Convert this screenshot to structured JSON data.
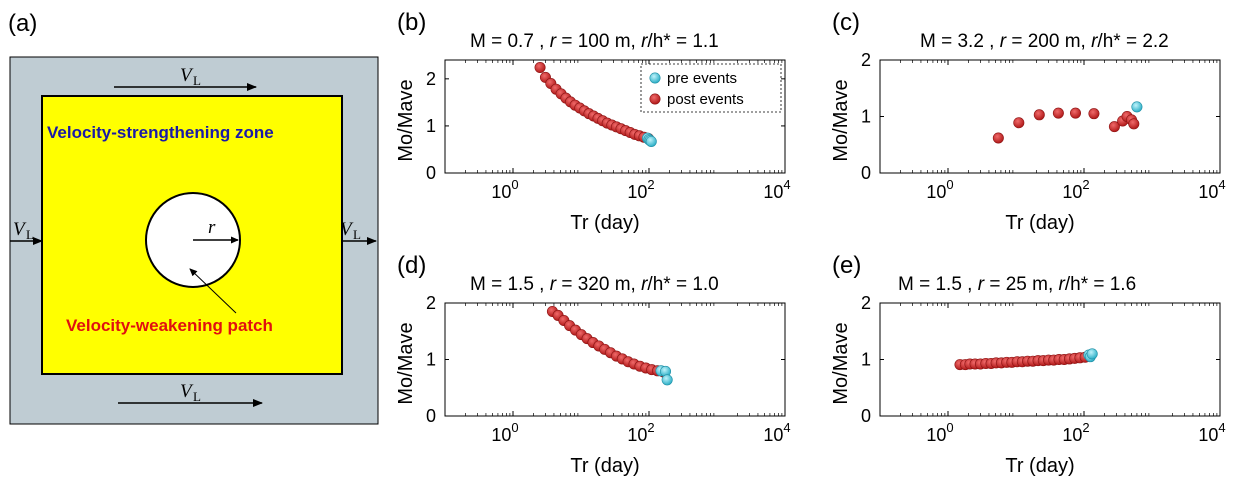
{
  "diagram": {
    "panel_label": "(a)",
    "strengthening_label": "Velocity-strengthening zone",
    "weakening_label": "Velocity-weakening patch",
    "radius_label": "r",
    "loading_main": "V",
    "loading_sub": "L",
    "colors": {
      "outer": "#bfccd3",
      "zone": "#ffff00",
      "patch": "#ffffff",
      "blue_text": "#1a1aa8",
      "red_text": "#e01010"
    }
  },
  "legend": {
    "pre_label": "pre events",
    "post_label": "post events"
  },
  "colors": {
    "pre": "#3cc6dc",
    "post": "#d42a2a"
  },
  "chart_data": [
    {
      "id": "b",
      "panel_label": "(b)",
      "type": "scatter",
      "title_parts": {
        "m": "M = 0.7 , ",
        "r_sym": "r",
        "r_val": " = 100 m, ",
        "rh_sym": "r",
        "rh_val": "/h* = 1.1"
      },
      "xlabel": "Tr (day)",
      "ylabel": "Mo/Mave",
      "xscale": "log",
      "xlim": [
        0.1,
        10000
      ],
      "ylim": [
        0,
        2.4
      ],
      "xticks": [
        {
          "v": 1,
          "base": "10",
          "exp": "0"
        },
        {
          "v": 100,
          "base": "10",
          "exp": "2"
        },
        {
          "v": 10000,
          "base": "10",
          "exp": "4"
        }
      ],
      "yticks": [
        "0",
        "1",
        "2"
      ],
      "legend": "top-right",
      "series": [
        {
          "name": "pre events",
          "x": [
            95,
            100,
            104,
            108
          ],
          "y": [
            0.74,
            0.71,
            0.69,
            0.67
          ]
        },
        {
          "name": "post events",
          "x": [
            2.5,
            3.0,
            3.6,
            4.3,
            5.1,
            6.0,
            7.0,
            8.2,
            9.6,
            11.2,
            13.1,
            15.3,
            17.8,
            20.8,
            24.3,
            28.4,
            33.2,
            38.8,
            45.3,
            52.9,
            61.8,
            72.2,
            84.3,
            98.5
          ],
          "y": [
            2.24,
            2.03,
            1.9,
            1.78,
            1.68,
            1.59,
            1.51,
            1.44,
            1.38,
            1.32,
            1.26,
            1.21,
            1.16,
            1.11,
            1.06,
            1.02,
            0.98,
            0.94,
            0.9,
            0.86,
            0.82,
            0.79,
            0.76,
            0.73
          ]
        }
      ]
    },
    {
      "id": "c",
      "panel_label": "(c)",
      "type": "scatter",
      "title_parts": {
        "m": "M = 3.2 , ",
        "r_sym": "r",
        "r_val": " = 200 m, ",
        "rh_sym": "r",
        "rh_val": "/h* = 2.2"
      },
      "xlabel": "Tr (day)",
      "ylabel": "Mo/Mave",
      "xscale": "log",
      "xlim": [
        0.1,
        10000
      ],
      "ylim": [
        0,
        2
      ],
      "xticks": [
        {
          "v": 1,
          "base": "10",
          "exp": "0"
        },
        {
          "v": 100,
          "base": "10",
          "exp": "2"
        },
        {
          "v": 10000,
          "base": "10",
          "exp": "4"
        }
      ],
      "yticks": [
        "0",
        "1",
        "2"
      ],
      "series": [
        {
          "name": "pre events",
          "x": [
            600
          ],
          "y": [
            1.17
          ]
        },
        {
          "name": "post events",
          "x": [
            5.5,
            11,
            22,
            42,
            75,
            140,
            280,
            370,
            430,
            500,
            540
          ],
          "y": [
            0.62,
            0.89,
            1.03,
            1.06,
            1.06,
            1.05,
            0.82,
            0.92,
            1.0,
            0.94,
            0.87
          ]
        }
      ]
    },
    {
      "id": "d",
      "panel_label": "(d)",
      "type": "scatter",
      "title_parts": {
        "m": "M = 1.5 , ",
        "r_sym": "r",
        "r_val": " = 320 m, ",
        "rh_sym": "r",
        "rh_val": "/h* = 1.0"
      },
      "xlabel": "Tr (day)",
      "ylabel": "Mo/Mave",
      "xscale": "log",
      "xlim": [
        0.1,
        10000
      ],
      "ylim": [
        0,
        2
      ],
      "xticks": [
        {
          "v": 1,
          "base": "10",
          "exp": "0"
        },
        {
          "v": 100,
          "base": "10",
          "exp": "2"
        },
        {
          "v": 10000,
          "base": "10",
          "exp": "4"
        }
      ],
      "yticks": [
        "0",
        "1",
        "2"
      ],
      "series": [
        {
          "name": "pre events",
          "x": [
            150,
            175,
            185
          ],
          "y": [
            0.8,
            0.79,
            0.64
          ]
        },
        {
          "name": "post events",
          "x": [
            3.8,
            4.6,
            5.6,
            6.8,
            8.3,
            10.1,
            12.3,
            15.0,
            18.3,
            22.3,
            27.2,
            33.2,
            40.5,
            49.4,
            60.3,
            73.6,
            89.8,
            109.6,
            133.7,
            163.1
          ],
          "y": [
            1.85,
            1.78,
            1.69,
            1.6,
            1.52,
            1.44,
            1.37,
            1.3,
            1.24,
            1.18,
            1.12,
            1.06,
            1.01,
            0.96,
            0.92,
            0.88,
            0.85,
            0.82,
            0.8,
            0.78
          ]
        }
      ]
    },
    {
      "id": "e",
      "panel_label": "(e)",
      "type": "scatter",
      "title_parts": {
        "m": "M = 1.5 , ",
        "r_sym": "r",
        "r_val": " = 25 m, ",
        "rh_sym": "r",
        "rh_val": "/h* = 1.6"
      },
      "xlabel": "Tr (day)",
      "ylabel": "Mo/Mave",
      "xscale": "log",
      "xlim": [
        0.1,
        10000
      ],
      "ylim": [
        0,
        2
      ],
      "xticks": [
        {
          "v": 1,
          "base": "10",
          "exp": "0"
        },
        {
          "v": 100,
          "base": "10",
          "exp": "2"
        },
        {
          "v": 10000,
          "base": "10",
          "exp": "4"
        }
      ],
      "yticks": [
        "0",
        "1",
        "2"
      ],
      "series": [
        {
          "name": "pre events",
          "x": [
            118,
            124,
            132
          ],
          "y": [
            1.08,
            1.05,
            1.1
          ]
        },
        {
          "name": "post events",
          "x": [
            1.5,
            1.8,
            2.1,
            2.5,
            3.0,
            3.6,
            4.3,
            5.1,
            6.1,
            7.3,
            8.7,
            10.4,
            12.4,
            14.8,
            17.7,
            21.1,
            25.2,
            30.1,
            35.9,
            42.9,
            51.2,
            61.1,
            73.0,
            87.1,
            104.0
          ],
          "y": [
            0.91,
            0.91,
            0.92,
            0.92,
            0.92,
            0.93,
            0.93,
            0.94,
            0.94,
            0.95,
            0.95,
            0.96,
            0.96,
            0.97,
            0.97,
            0.98,
            0.98,
            0.99,
            0.99,
            1.0,
            1.0,
            1.01,
            1.02,
            1.03,
            1.04
          ]
        }
      ]
    }
  ]
}
